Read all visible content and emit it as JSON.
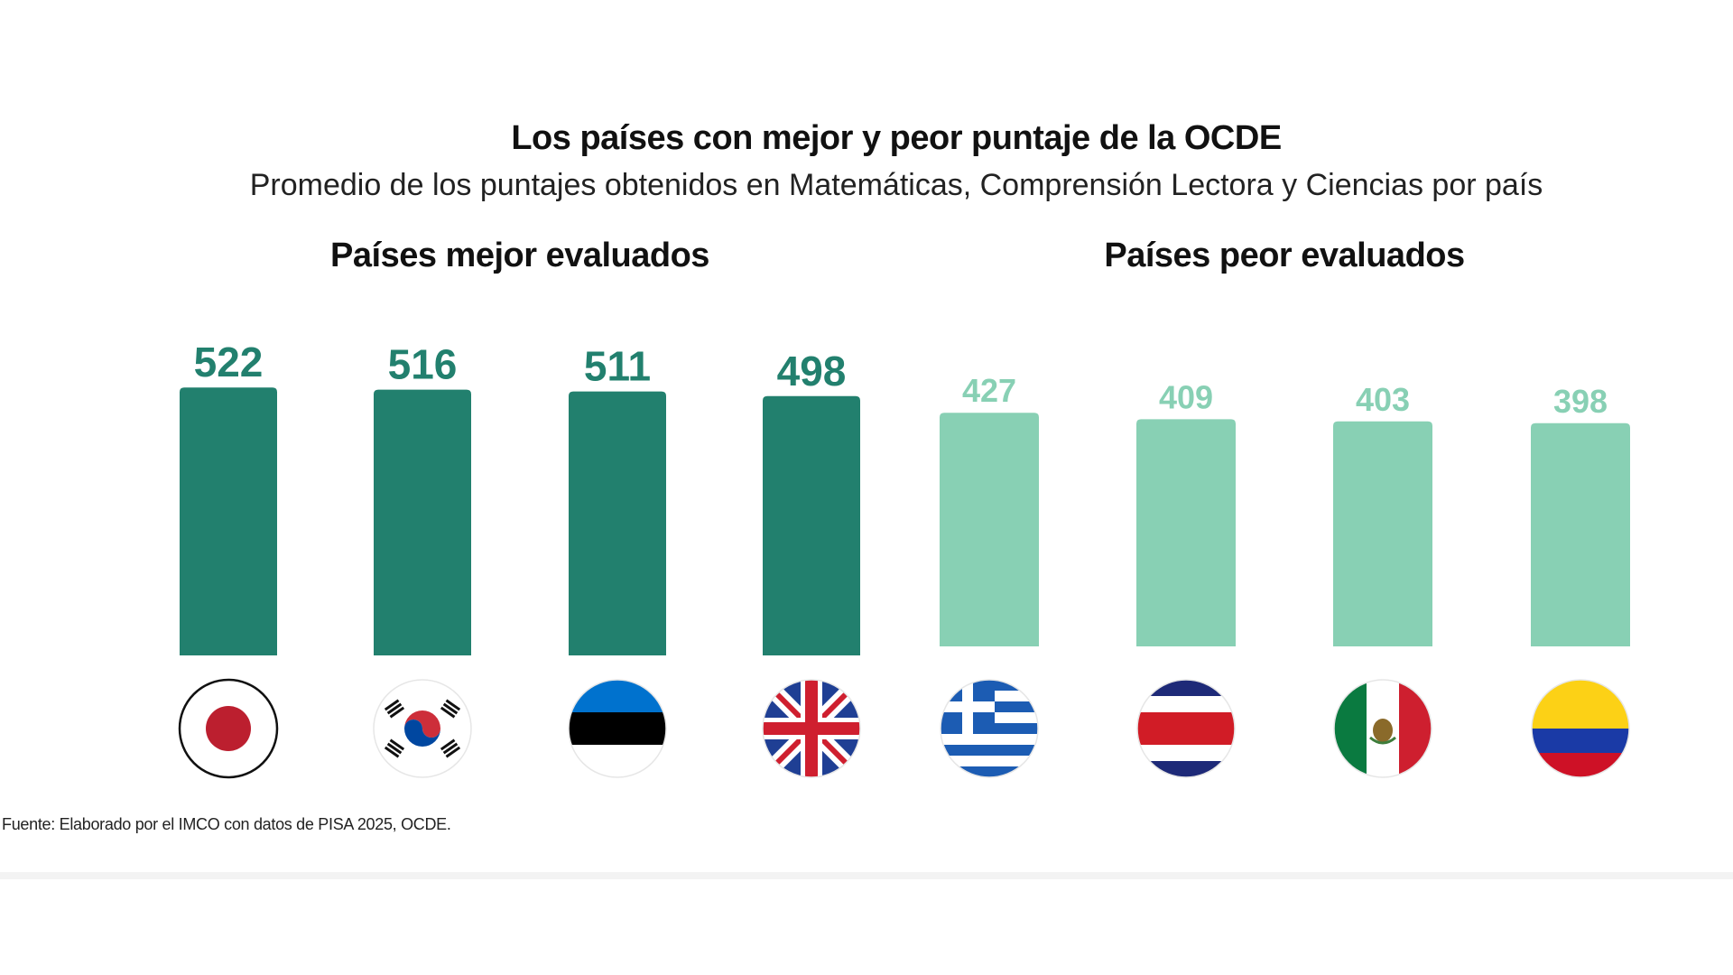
{
  "chart_data": {
    "type": "bar",
    "title": "Los países con mejor y peor puntaje de la OCDE",
    "subtitle": "Promedio de los puntajes obtenidos en Matemáticas, Comprensión Lectora y Ciencias por país",
    "groups": [
      {
        "name": "Países mejor evaluados",
        "color": "#22806e",
        "categories": [
          "Japan",
          "South Korea",
          "Estonia",
          "United Kingdom"
        ],
        "values": [
          522,
          516,
          511,
          498
        ],
        "labels": [
          "522",
          "516",
          "511",
          "498"
        ],
        "flag_icons": [
          "japan-flag-icon",
          "south-korea-flag-icon",
          "estonia-flag-icon",
          "uk-flag-icon"
        ]
      },
      {
        "name": "Países peor evaluados",
        "color": "#88d0b4",
        "categories": [
          "Greece",
          "Costa Rica",
          "Mexico",
          "Colombia"
        ],
        "values": [
          427,
          409,
          403,
          398
        ],
        "labels": [
          "427",
          "409",
          "403",
          "398"
        ],
        "flag_icons": [
          "greece-flag-icon",
          "costa-rica-flag-icon",
          "mexico-flag-icon",
          "colombia-flag-icon"
        ]
      }
    ],
    "value_labels": true,
    "grid": false,
    "legend": "none"
  },
  "source": "Fuente: Elaborado por el IMCO con datos de PISA 2025, OCDE."
}
